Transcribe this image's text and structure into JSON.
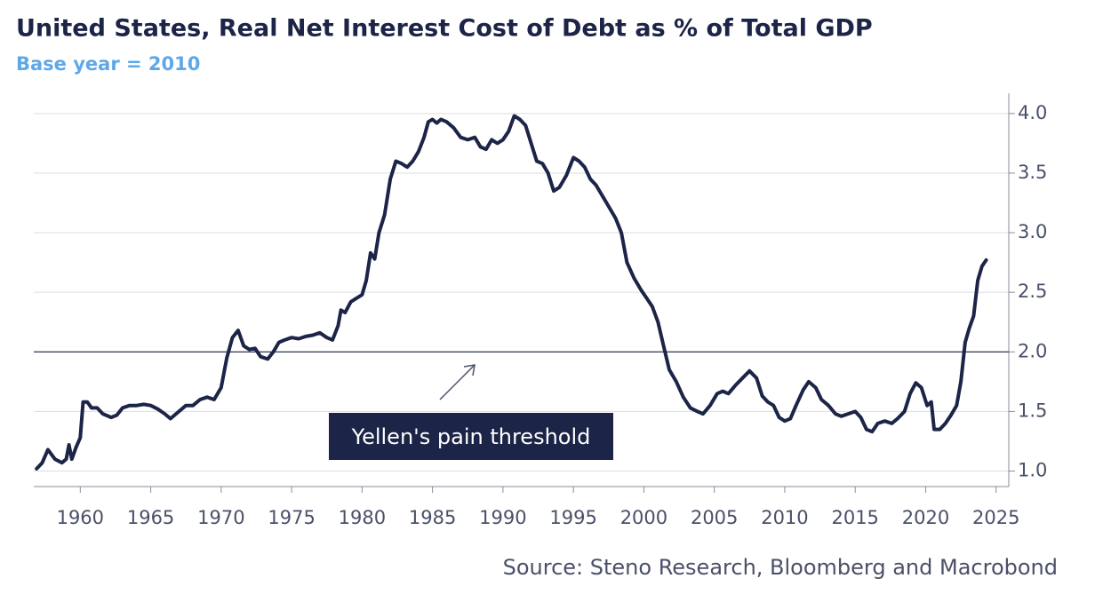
{
  "chart_data": {
    "type": "line",
    "title": "United States, Real Net Interest Cost of Debt as % of Total GDP",
    "subtitle": "Base year = 2010",
    "source": "Source: Steno Research, Bloomberg and Macrobond",
    "annotation": "Yellen's pain threshold",
    "threshold": 2,
    "color": "#1c2447",
    "xlim": [
      1956.7,
      2025.9
    ],
    "xticks": [
      1960,
      1965,
      1970,
      1975,
      1980,
      1985,
      1990,
      1995,
      2000,
      2005,
      2010,
      2015,
      2020,
      2025
    ],
    "ylim": [
      0.87,
      4.17
    ],
    "yticks": [
      {
        "value": 1,
        "label": "1.0"
      },
      1.5,
      {
        "value": 2,
        "label": "2.0"
      },
      2.5,
      {
        "value": 3,
        "label": "3.0"
      },
      3.5,
      {
        "value": 4,
        "label": "4.0"
      }
    ],
    "grid": true,
    "x": [
      1956.9,
      1957.3,
      1957.7,
      1958.2,
      1958.7,
      1959.0,
      1959.2,
      1959.4,
      1959.7,
      1960.0,
      1960.2,
      1960.5,
      1960.8,
      1961.2,
      1961.6,
      1962.2,
      1962.6,
      1963.0,
      1963.5,
      1964.0,
      1964.5,
      1965.0,
      1965.5,
      1966.0,
      1966.4,
      1967.0,
      1967.5,
      1968.0,
      1968.5,
      1969.0,
      1969.5,
      1970.0,
      1970.4,
      1970.8,
      1971.2,
      1971.6,
      1972.0,
      1972.4,
      1972.8,
      1973.3,
      1973.7,
      1974.1,
      1974.5,
      1975.0,
      1975.5,
      1976.0,
      1976.5,
      1977.0,
      1977.5,
      1977.9,
      1978.3,
      1978.5,
      1978.8,
      1979.2,
      1979.6,
      1980.0,
      1980.3,
      1980.6,
      1980.9,
      1981.2,
      1981.6,
      1982.0,
      1982.4,
      1982.8,
      1983.2,
      1983.6,
      1984.0,
      1984.4,
      1984.7,
      1985.0,
      1985.3,
      1985.6,
      1986.0,
      1986.5,
      1987.0,
      1987.5,
      1988.0,
      1988.4,
      1988.8,
      1989.2,
      1989.6,
      1990.0,
      1990.4,
      1990.8,
      1991.2,
      1991.6,
      1992.0,
      1992.4,
      1992.8,
      1993.2,
      1993.6,
      1994.0,
      1994.5,
      1995.0,
      1995.4,
      1995.8,
      1996.2,
      1996.6,
      1997.0,
      1997.5,
      1998.0,
      1998.4,
      1998.8,
      1999.3,
      1999.8,
      2000.2,
      2000.6,
      2001.0,
      2001.4,
      2001.8,
      2002.3,
      2002.8,
      2003.3,
      2003.8,
      2004.2,
      2004.7,
      2005.2,
      2005.6,
      2006.0,
      2006.5,
      2007.0,
      2007.5,
      2008.0,
      2008.4,
      2008.8,
      2009.2,
      2009.6,
      2010.0,
      2010.4,
      2010.8,
      2011.3,
      2011.7,
      2012.2,
      2012.6,
      2013.1,
      2013.6,
      2014.0,
      2014.5,
      2015.0,
      2015.4,
      2015.8,
      2016.2,
      2016.6,
      2017.1,
      2017.6,
      2018.0,
      2018.5,
      2018.9,
      2019.3,
      2019.7,
      2020.1,
      2020.4,
      2020.6,
      2021.0,
      2021.4,
      2021.8,
      2022.2,
      2022.5,
      2022.8,
      2023.1,
      2023.4,
      2023.7,
      2024.0,
      2024.3
    ],
    "values": [
      1.02,
      1.07,
      1.18,
      1.1,
      1.07,
      1.1,
      1.22,
      1.1,
      1.2,
      1.28,
      1.58,
      1.58,
      1.53,
      1.53,
      1.48,
      1.45,
      1.47,
      1.53,
      1.55,
      1.55,
      1.56,
      1.55,
      1.52,
      1.48,
      1.44,
      1.5,
      1.55,
      1.55,
      1.6,
      1.62,
      1.6,
      1.7,
      1.95,
      2.12,
      2.18,
      2.05,
      2.02,
      2.03,
      1.96,
      1.94,
      2.0,
      2.08,
      2.1,
      2.12,
      2.11,
      2.13,
      2.14,
      2.16,
      2.12,
      2.1,
      2.22,
      2.35,
      2.33,
      2.42,
      2.45,
      2.48,
      2.6,
      2.83,
      2.78,
      3.0,
      3.15,
      3.45,
      3.6,
      3.58,
      3.55,
      3.6,
      3.68,
      3.8,
      3.93,
      3.95,
      3.92,
      3.95,
      3.93,
      3.88,
      3.8,
      3.78,
      3.8,
      3.72,
      3.7,
      3.78,
      3.75,
      3.78,
      3.85,
      3.98,
      3.95,
      3.9,
      3.75,
      3.6,
      3.58,
      3.5,
      3.35,
      3.38,
      3.48,
      3.63,
      3.6,
      3.55,
      3.45,
      3.4,
      3.32,
      3.22,
      3.12,
      3.0,
      2.75,
      2.62,
      2.52,
      2.45,
      2.38,
      2.25,
      2.05,
      1.85,
      1.75,
      1.62,
      1.53,
      1.5,
      1.48,
      1.55,
      1.65,
      1.67,
      1.65,
      1.72,
      1.78,
      1.84,
      1.78,
      1.63,
      1.58,
      1.55,
      1.45,
      1.42,
      1.44,
      1.55,
      1.68,
      1.75,
      1.7,
      1.6,
      1.55,
      1.48,
      1.46,
      1.48,
      1.5,
      1.45,
      1.35,
      1.33,
      1.4,
      1.42,
      1.4,
      1.44,
      1.5,
      1.65,
      1.74,
      1.7,
      1.55,
      1.58,
      1.35,
      1.35,
      1.4,
      1.47,
      1.55,
      1.75,
      2.08,
      2.2,
      2.3,
      2.6,
      2.72,
      2.77
    ]
  }
}
